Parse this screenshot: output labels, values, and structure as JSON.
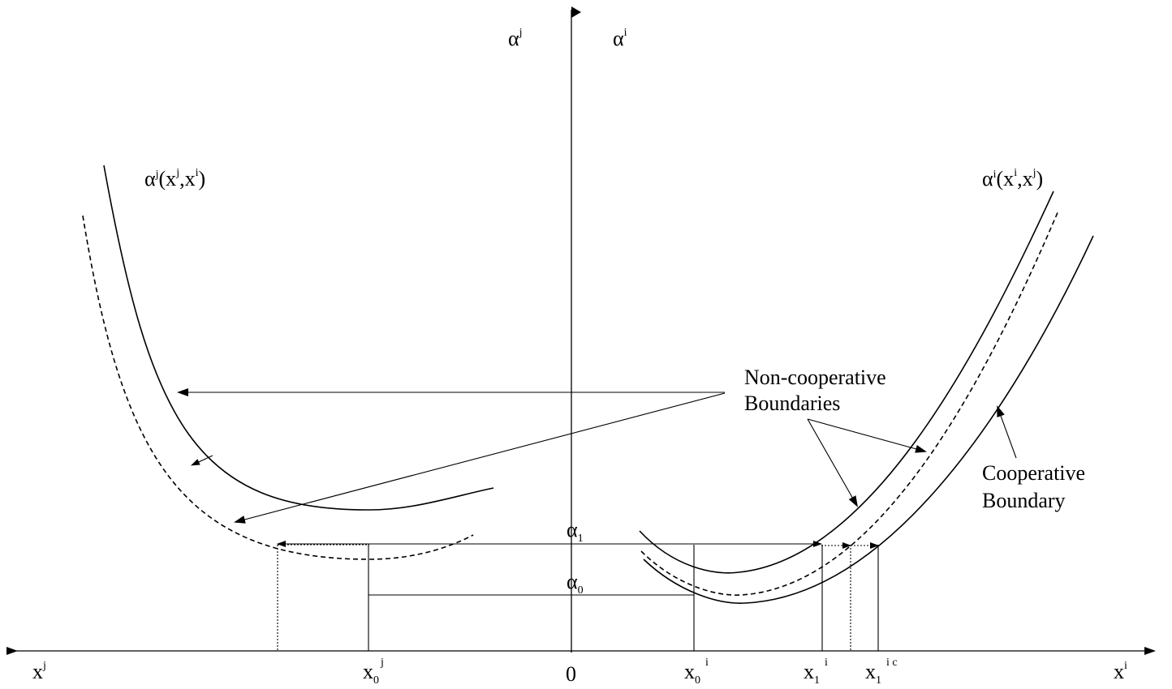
{
  "labels": {
    "axis_i_top": {
      "base": "α",
      "sup": "i"
    },
    "axis_j_top": {
      "base": "α",
      "sup": "j"
    },
    "curve_j": {
      "a": "α",
      "a_sup": "j",
      "open": "(x",
      "s1": "j",
      "comma": ",x",
      "s2": "i",
      "close": ")"
    },
    "curve_i": {
      "a": "α",
      "a_sup": "i",
      "open": "(x",
      "s1": "i",
      "comma": ",x",
      "s2": "j",
      "close": ")"
    },
    "noncoop_1": "Non-cooperative",
    "noncoop_2": "Boundaries",
    "coop_1": "Cooperative",
    "coop_2": "Boundary",
    "alpha1": {
      "base": "α",
      "sub": "1"
    },
    "alpha0": {
      "base": "α",
      "sub": "0"
    },
    "xj_axis": {
      "base": "x",
      "sup": "j"
    },
    "xi_axis": {
      "base": "x",
      "sup": "i"
    },
    "origin": "0",
    "x0j": {
      "base": "x",
      "sub": "0",
      "sup": "j"
    },
    "x0i": {
      "base": "x",
      "sub": "0",
      "sup": "i"
    },
    "x1i": {
      "base": "x",
      "sub": "1",
      "sup": "i"
    },
    "x1ic": {
      "base": "x",
      "sub": "1",
      "sup": "i c"
    }
  }
}
